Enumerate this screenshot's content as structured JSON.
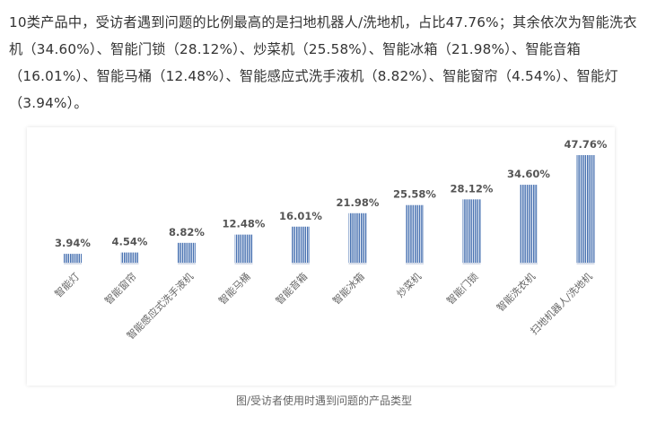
{
  "paragraph": {
    "text": "10类产品中，受访者遇到问题的比例最高的是扫地机器人/洗地机，占比47.76%；其余依次为智能洗衣机（34.60%）、智能门锁（28.12%）、炒菜机（25.58%）、智能冰箱（21.98%）、智能音箱（16.01%）、智能马桶（12.48%）、智能感应式洗手液机（8.82%）、智能窗帘（4.54%）、智能灯（3.94%）。"
  },
  "caption": "图/受访者使用时遇到问题的产品类型",
  "colors": {
    "bar": "#4a73b2",
    "bar_stripe": "#ffffff",
    "value_text": "#555555",
    "category_text": "#666666"
  },
  "chart_data": {
    "type": "bar",
    "categories": [
      "智能灯",
      "智能窗帘",
      "智能感应式洗手液机",
      "智能马桶",
      "智能音箱",
      "智能冰箱",
      "炒菜机",
      "智能门锁",
      "智能洗衣机",
      "扫地机器人/洗地机"
    ],
    "values": [
      3.94,
      4.54,
      8.82,
      12.48,
      16.01,
      21.98,
      25.58,
      28.12,
      34.6,
      47.76
    ],
    "value_labels": [
      "3.94%",
      "4.54%",
      "8.82%",
      "12.48%",
      "16.01%",
      "21.98%",
      "25.58%",
      "28.12%",
      "34.60%",
      "47.76%"
    ],
    "title": "",
    "xlabel": "",
    "ylabel": "",
    "ylim": [
      0,
      50
    ],
    "grid": false,
    "legend": "none",
    "category_label_rotation": "diagonal"
  }
}
